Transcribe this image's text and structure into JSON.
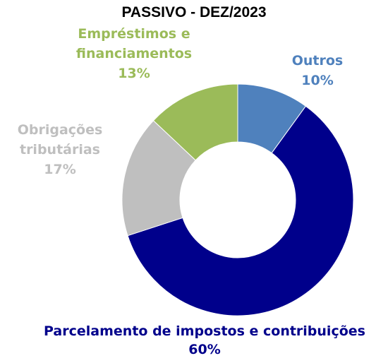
{
  "chart_data": {
    "type": "donut",
    "title": "PASSIVO - DEZ/2023",
    "categories": [
      "Outros",
      "Parcelamento de impostos e contribuições",
      "Obrigações tributárias",
      "Empréstimos e financiamentos"
    ],
    "values": [
      10,
      60,
      17,
      13
    ],
    "value_labels": [
      "10%",
      "60%",
      "17%",
      "13%"
    ],
    "colors": [
      "#4f81bd",
      "#00008b",
      "#bfbfbf",
      "#9bbb59"
    ]
  }
}
